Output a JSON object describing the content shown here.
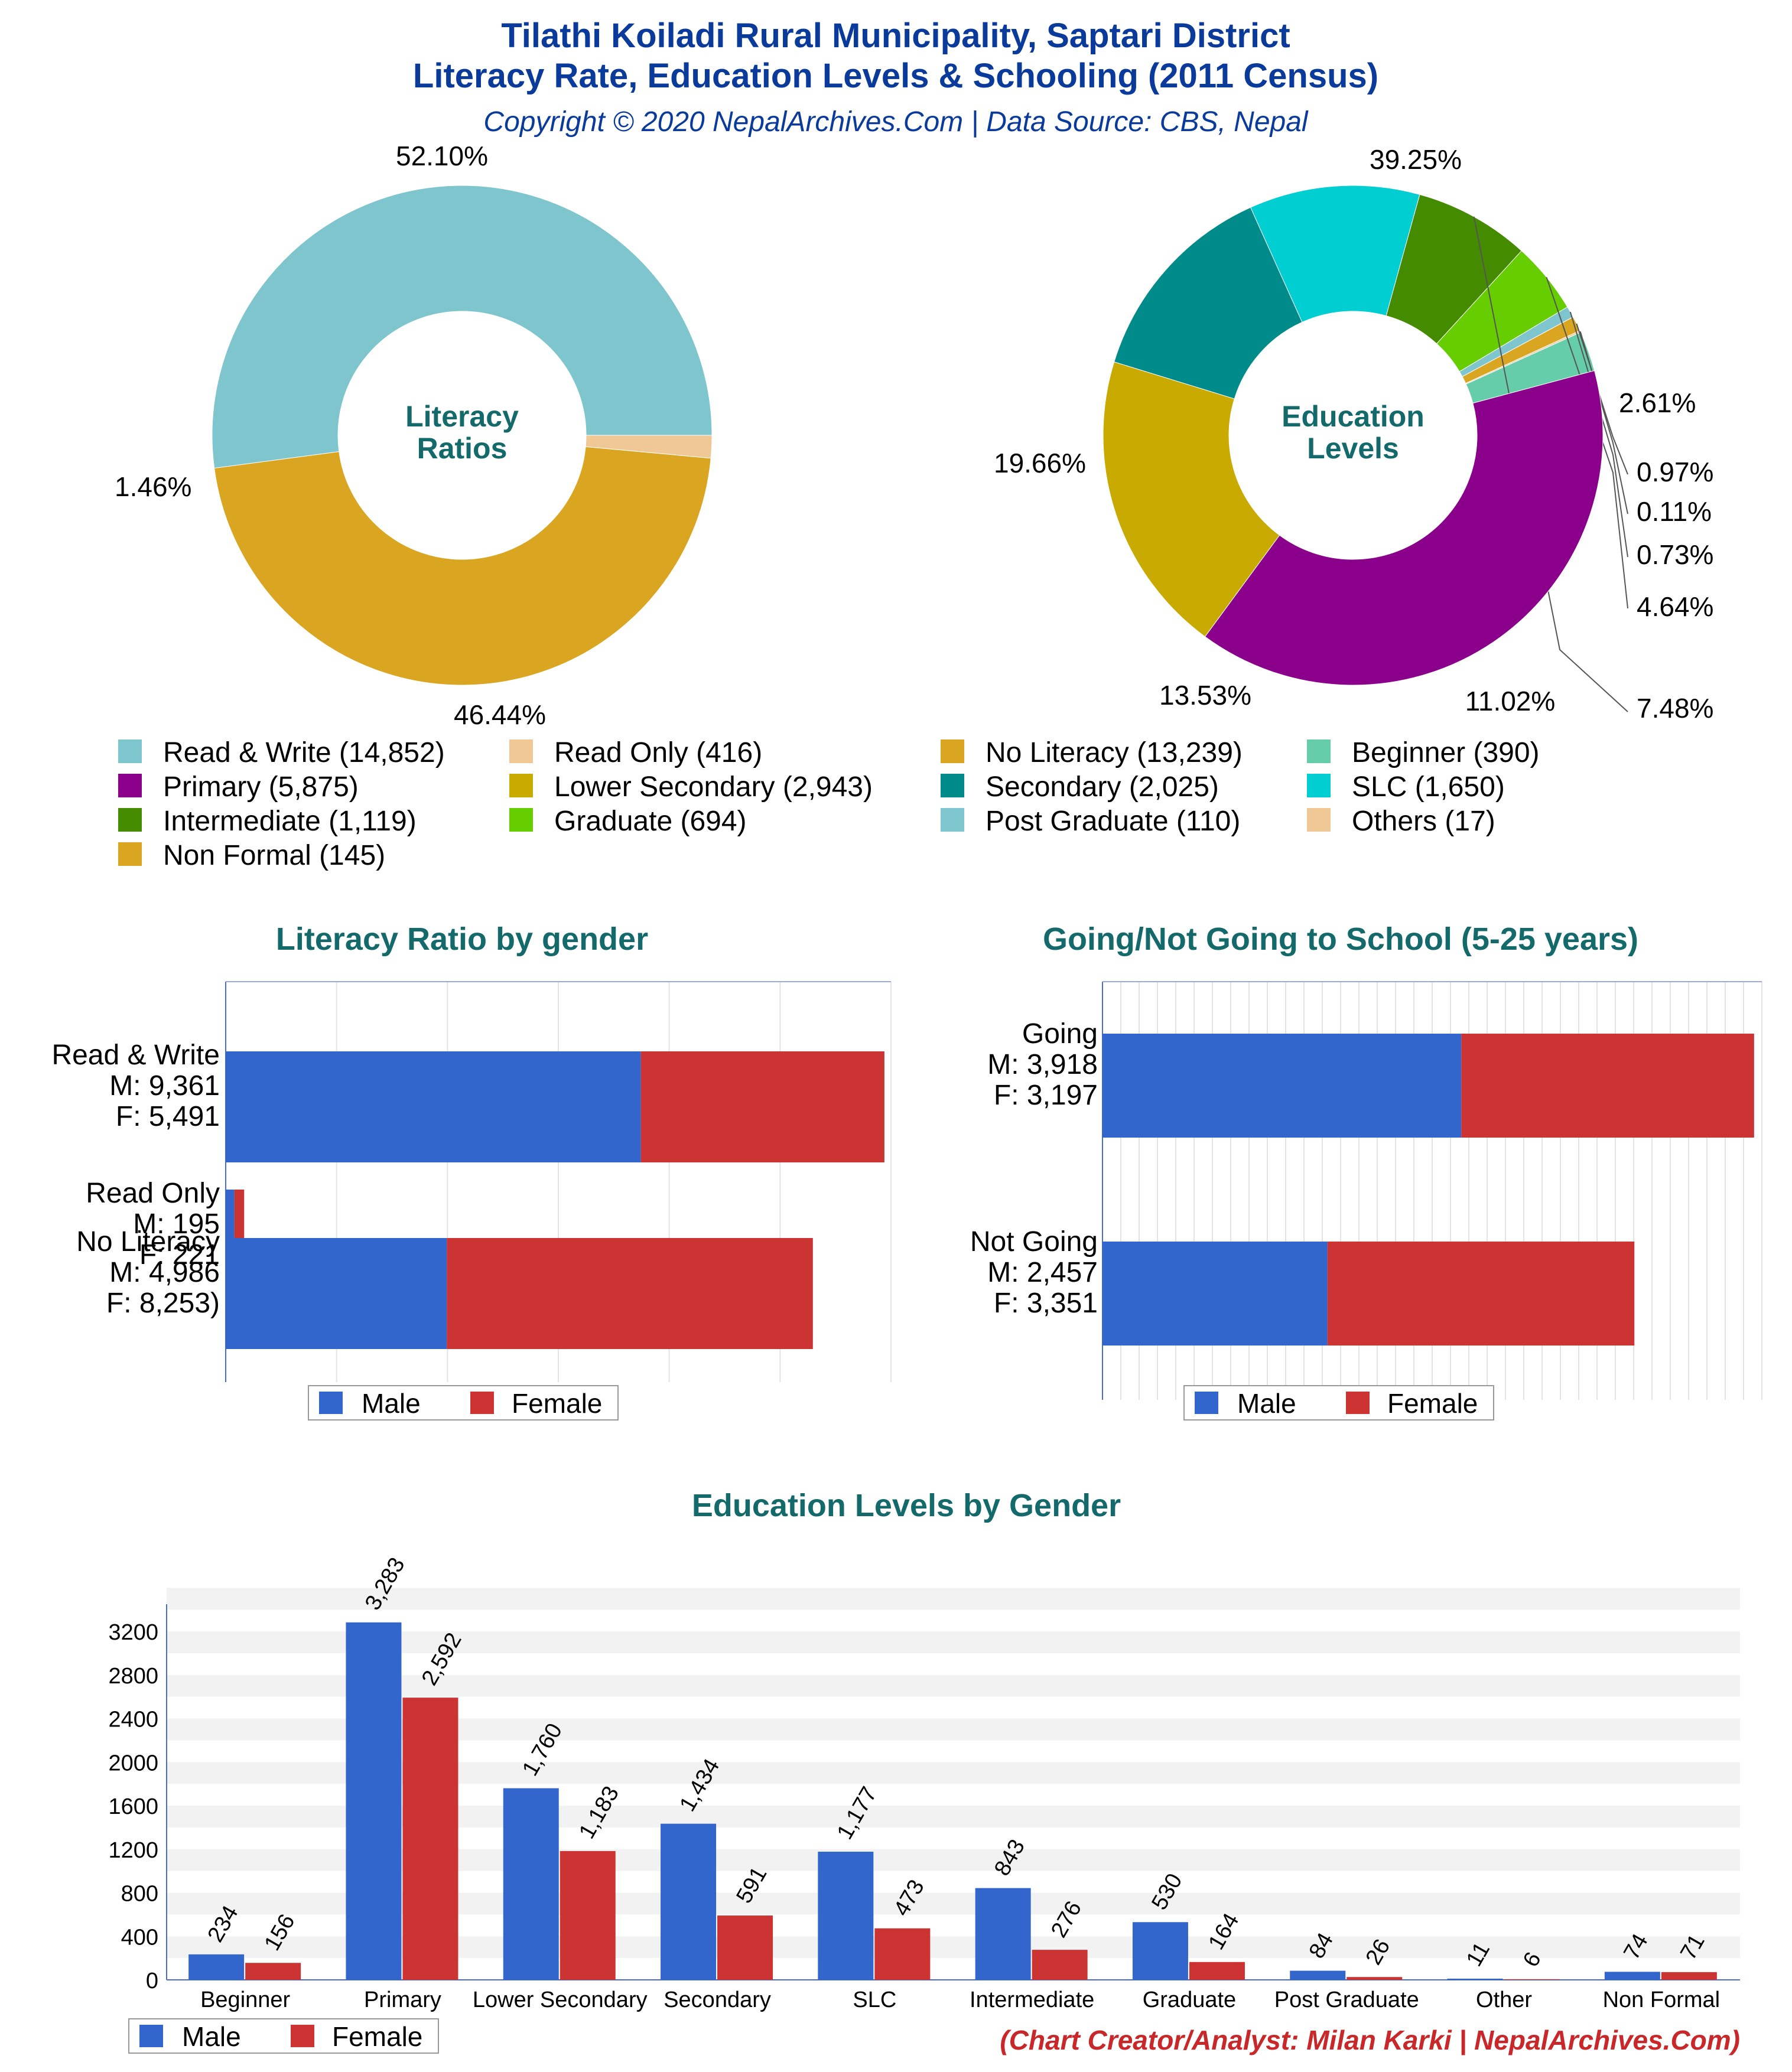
{
  "header": {
    "title_line1": "Tilathi Koiladi Rural Municipality, Saptari District",
    "title_line2": "Literacy Rate, Education Levels & Schooling (2011 Census)",
    "subtitle": "Copyright © 2020 NepalArchives.Com | Data Source: CBS, Nepal"
  },
  "credit": "(Chart Creator/Analyst: Milan Karki | NepalArchives.Com)",
  "legend_labels": {
    "male": "Male",
    "female": "Female"
  },
  "colors": {
    "male": "#3366cc",
    "female": "#cc3333",
    "heading_teal": "#146a6a",
    "title_blue": "#0a3a9a"
  },
  "top_legend": [
    {
      "text": "Read & Write (14,852)",
      "color": "#7ec5cd"
    },
    {
      "text": "Read Only (416)",
      "color": "#f0c896"
    },
    {
      "text": "No Literacy (13,239)",
      "color": "#daa520"
    },
    {
      "text": "Beginner (390)",
      "color": "#66cdaa"
    },
    {
      "text": "Primary (5,875)",
      "color": "#8b008b"
    },
    {
      "text": "Lower Secondary (2,943)",
      "color": "#c8aa00"
    },
    {
      "text": "Secondary (2,025)",
      "color": "#008b8b"
    },
    {
      "text": "SLC (1,650)",
      "color": "#00ced1"
    },
    {
      "text": "Intermediate (1,119)",
      "color": "#458b00"
    },
    {
      "text": "Graduate (694)",
      "color": "#66cd00"
    },
    {
      "text": "Post Graduate (110)",
      "color": "#7ec5cd"
    },
    {
      "text": "Others (17)",
      "color": "#f0c896"
    },
    {
      "text": "Non Formal (145)",
      "color": "#daa520"
    }
  ],
  "chart_data": [
    {
      "type": "pie",
      "title": "Literacy Ratios",
      "slices": [
        {
          "label": "Read & Write",
          "value": 14852,
          "pct_label": "52.10%",
          "color": "#7ec5cd"
        },
        {
          "label": "No Literacy",
          "value": 13239,
          "pct_label": "46.44%",
          "color": "#daa520"
        },
        {
          "label": "Read Only",
          "value": 416,
          "pct_label": "1.46%",
          "color": "#f0c896"
        }
      ]
    },
    {
      "type": "pie",
      "title": "Education Levels",
      "slices": [
        {
          "label": "Beginner",
          "value": 390,
          "pct_label": "2.61%",
          "color": "#66cdaa"
        },
        {
          "label": "Others",
          "value": 17,
          "pct_label": "0.11%",
          "color": "#f0c896"
        },
        {
          "label": "Non Formal",
          "value": 145,
          "pct_label": "0.97%",
          "color": "#daa520"
        },
        {
          "label": "Post Graduate",
          "value": 110,
          "pct_label": "0.73%",
          "color": "#7ec5cd"
        },
        {
          "label": "Graduate",
          "value": 694,
          "pct_label": "4.64%",
          "color": "#66cd00"
        },
        {
          "label": "Intermediate",
          "value": 1119,
          "pct_label": "7.48%",
          "color": "#458b00"
        },
        {
          "label": "SLC",
          "value": 1650,
          "pct_label": "11.02%",
          "color": "#00ced1"
        },
        {
          "label": "Secondary",
          "value": 2025,
          "pct_label": "13.53%",
          "color": "#008b8b"
        },
        {
          "label": "Lower Secondary",
          "value": 2943,
          "pct_label": "19.66%",
          "color": "#c8aa00"
        },
        {
          "label": "Primary",
          "value": 5875,
          "pct_label": "39.25%",
          "color": "#8b008b"
        }
      ]
    },
    {
      "type": "bar",
      "orientation": "horizontal-stacked",
      "title": "Literacy Ratio by gender",
      "categories": [
        "Read & Write",
        "Read Only",
        "No Literacy"
      ],
      "category_labels": [
        [
          "Read & Write",
          "M: 9,361",
          "F: 5,491"
        ],
        [
          "Read Only",
          "M: 195",
          "F: 221"
        ],
        [
          "No Literacy",
          "M: 4,986",
          "F: 8,253)"
        ]
      ],
      "series": [
        {
          "name": "Male",
          "values": [
            9361,
            195,
            4986
          ]
        },
        {
          "name": "Female",
          "values": [
            5491,
            221,
            8253
          ]
        }
      ],
      "xlim": [
        0,
        15000
      ]
    },
    {
      "type": "bar",
      "orientation": "horizontal-stacked",
      "title": "Going/Not Going to School (5-25 years)",
      "categories": [
        "Going",
        "Not Going"
      ],
      "category_labels": [
        [
          "Going",
          "M: 3,918",
          "F: 3,197"
        ],
        [
          "Not Going",
          "M: 2,457",
          "F: 3,351"
        ]
      ],
      "series": [
        {
          "name": "Male",
          "values": [
            3918,
            2457
          ]
        },
        {
          "name": "Female",
          "values": [
            3197,
            3351
          ]
        }
      ],
      "xlim": [
        0,
        7200
      ]
    },
    {
      "type": "bar",
      "title": "Education Levels by Gender",
      "categories": [
        "Beginner",
        "Primary",
        "Lower Secondary",
        "Secondary",
        "SLC",
        "Intermediate",
        "Graduate",
        "Post Graduate",
        "Other",
        "Non Formal"
      ],
      "series": [
        {
          "name": "Male",
          "values": [
            234,
            3283,
            1760,
            1434,
            1177,
            843,
            530,
            84,
            11,
            74
          ],
          "labels": [
            "234",
            "3,283",
            "1,760",
            "1,434",
            "1,177",
            "843",
            "530",
            "84",
            "11",
            "74"
          ]
        },
        {
          "name": "Female",
          "values": [
            156,
            2592,
            1183,
            591,
            473,
            276,
            164,
            26,
            6,
            71
          ],
          "labels": [
            "156",
            "2,592",
            "1,183",
            "591",
            "473",
            "276",
            "164",
            "26",
            "6",
            "71"
          ]
        }
      ],
      "yticks": [
        "0",
        "400",
        "800",
        "1200",
        "1600",
        "2000",
        "2400",
        "2800",
        "3200"
      ],
      "ylim": [
        0,
        3450
      ]
    }
  ]
}
